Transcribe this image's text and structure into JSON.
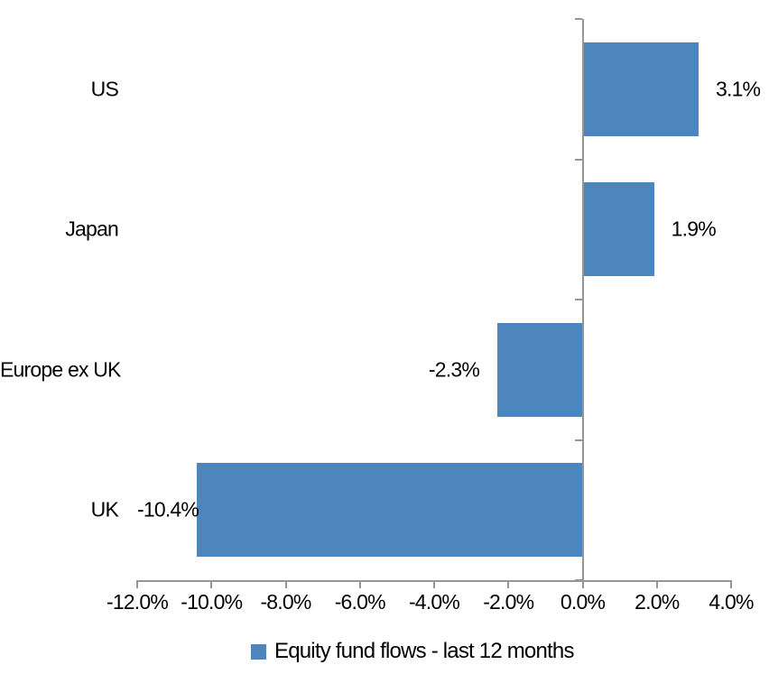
{
  "chart_data": {
    "type": "bar",
    "orientation": "horizontal",
    "title": "",
    "categories": [
      "US",
      "Japan",
      "Europe ex UK",
      "UK"
    ],
    "values": [
      3.1,
      1.9,
      -2.3,
      -10.4
    ],
    "data_labels": [
      "3.1%",
      "1.9%",
      "-2.3%",
      "-10.4%"
    ],
    "legend_label": "Equity fund flows - last 12 months",
    "legend_position": "bottom",
    "xlim": [
      -12,
      4
    ],
    "x_ticks": [
      -12,
      -10,
      -8,
      -6,
      -4,
      -2,
      0,
      2,
      4
    ],
    "x_tick_labels": [
      "-12.0%",
      "-10.0%",
      "-8.0%",
      "-6.0%",
      "-4.0%",
      "-2.0%",
      "0.0%",
      "2.0%",
      "4.0%"
    ],
    "grid": false,
    "colors": {
      "bar": "#4D86BD",
      "axis": "#969696",
      "text": "#000000",
      "background": "#FFFFFF"
    }
  }
}
